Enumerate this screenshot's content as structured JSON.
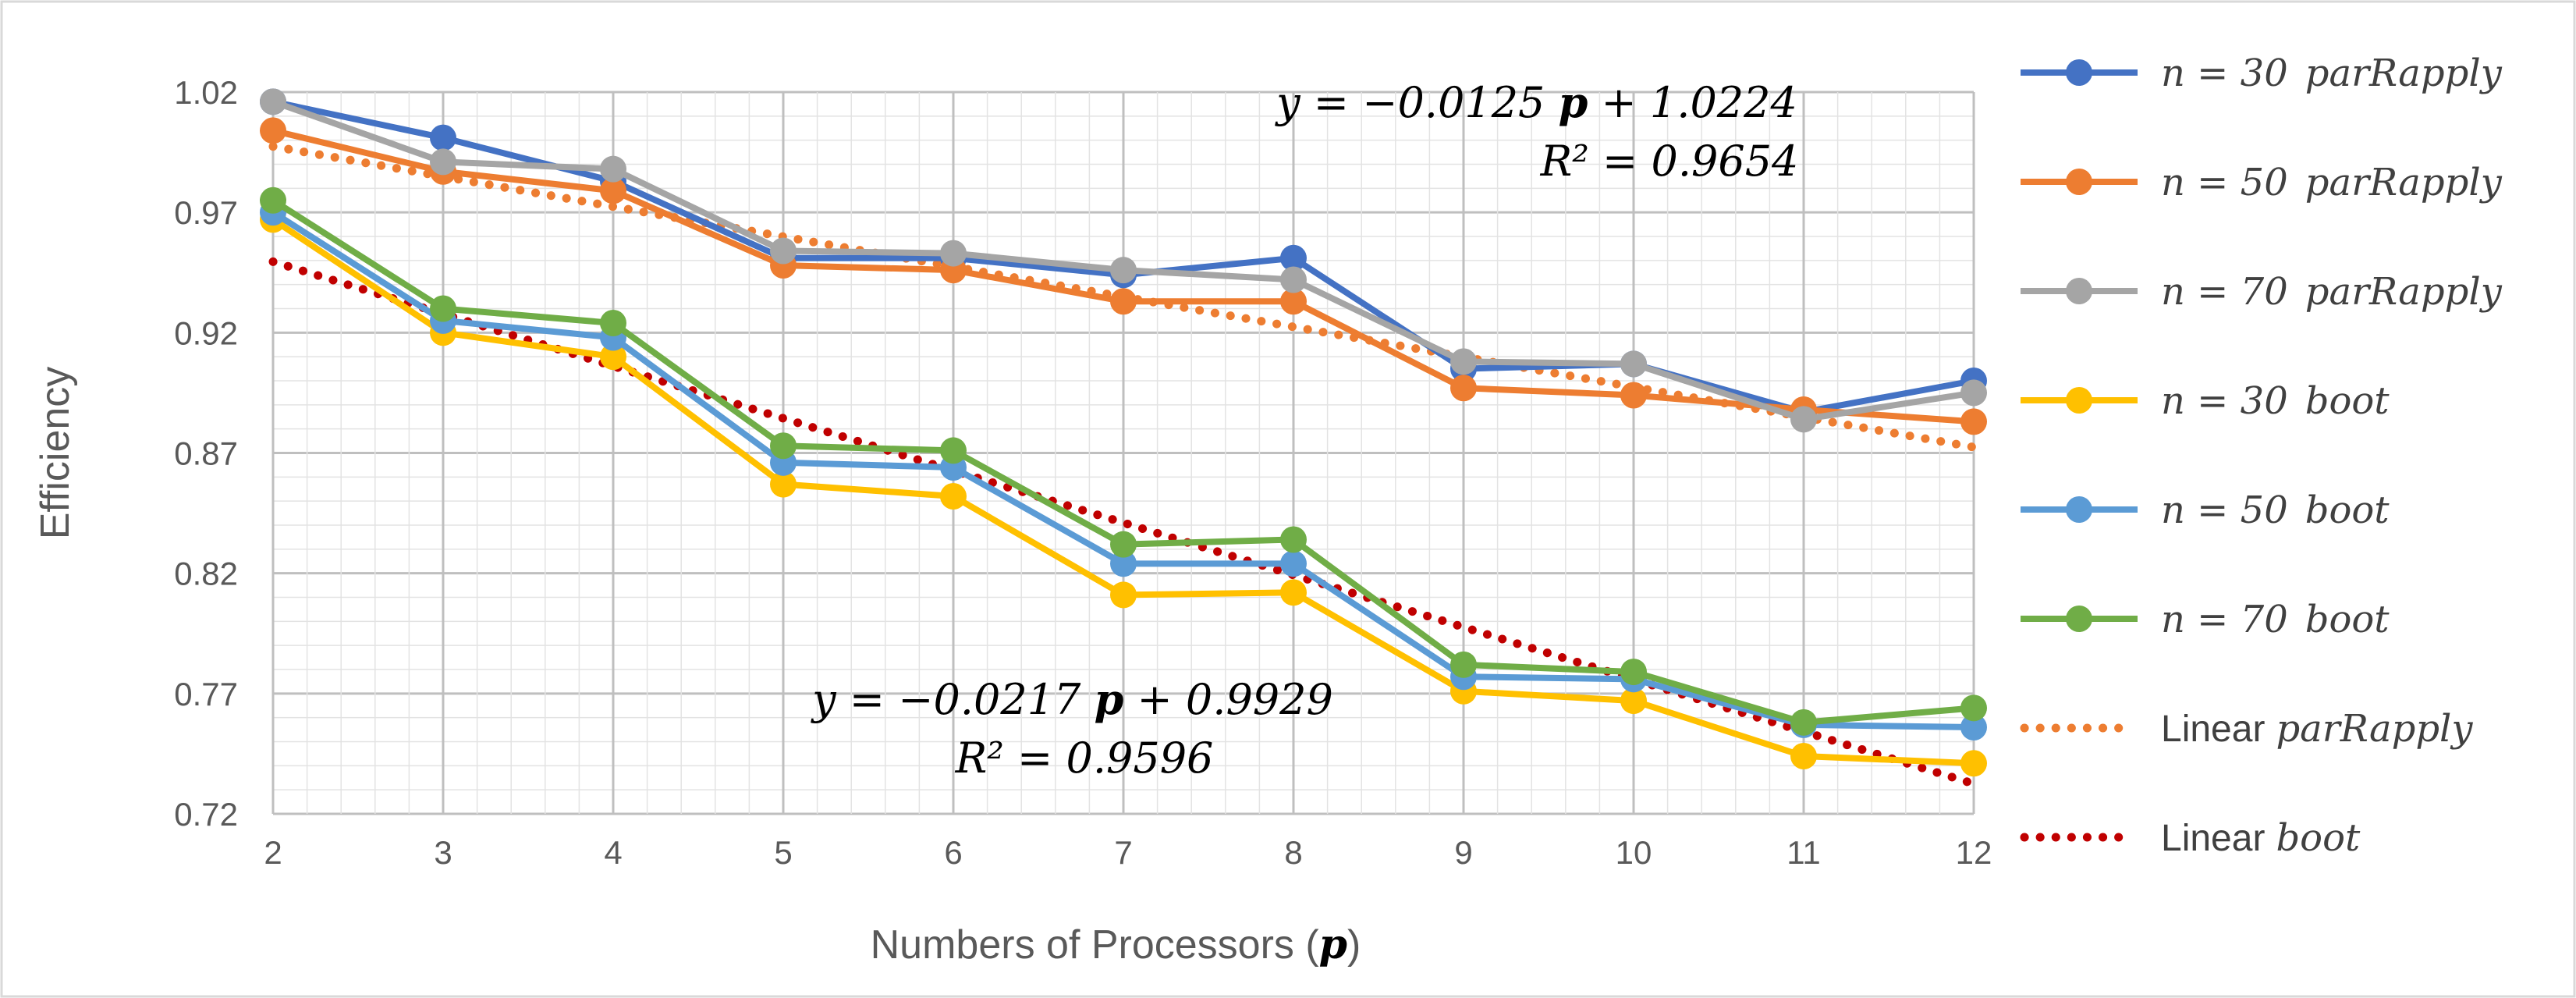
{
  "chart_data": {
    "type": "line",
    "title": "",
    "xlabel_prefix": "Numbers of Processors (",
    "xlabel_symbol": "p",
    "xlabel_suffix": ")",
    "ylabel": "Efficiency",
    "x": [
      2,
      3,
      4,
      5,
      6,
      7,
      8,
      9,
      10,
      11,
      12
    ],
    "x_tick_labels": [
      "2",
      "3",
      "4",
      "5",
      "6",
      "7",
      "8",
      "9",
      "10",
      "11",
      "12"
    ],
    "y_tick_labels": [
      "0.72",
      "0.77",
      "0.82",
      "0.87",
      "0.92",
      "0.97",
      "1.02"
    ],
    "ylim": [
      0.72,
      1.02
    ],
    "xlim": [
      2,
      12
    ],
    "grid": true,
    "legend_position": "right",
    "series": [
      {
        "name": "n = 30  parRapply",
        "n_label": "n = 30",
        "method": "parRapply",
        "color": "#4472C4",
        "values": [
          1.016,
          1.001,
          0.983,
          0.951,
          0.951,
          0.944,
          0.951,
          0.905,
          0.907,
          0.887,
          0.9
        ]
      },
      {
        "name": "n = 50  parRapply",
        "n_label": "n = 50",
        "method": "parRapply",
        "color": "#ED7D31",
        "values": [
          1.004,
          0.987,
          0.979,
          0.948,
          0.946,
          0.933,
          0.933,
          0.897,
          0.894,
          0.888,
          0.883
        ]
      },
      {
        "name": "n = 70  parRapply",
        "n_label": "n = 70",
        "method": "parRapply",
        "color": "#A5A5A5",
        "values": [
          1.016,
          0.991,
          0.988,
          0.954,
          0.953,
          0.946,
          0.942,
          0.908,
          0.907,
          0.884,
          0.895
        ]
      },
      {
        "name": "n = 30  boot",
        "n_label": "n = 30",
        "method": "boot",
        "color": "#FFC000",
        "values": [
          0.967,
          0.92,
          0.91,
          0.857,
          0.852,
          0.811,
          0.812,
          0.771,
          0.767,
          0.744,
          0.741
        ]
      },
      {
        "name": "n = 50  boot",
        "n_label": "n = 50",
        "method": "boot",
        "color": "#5B9BD5",
        "values": [
          0.97,
          0.925,
          0.918,
          0.866,
          0.864,
          0.824,
          0.824,
          0.777,
          0.776,
          0.757,
          0.756
        ]
      },
      {
        "name": "n = 70  boot",
        "n_label": "n = 70",
        "method": "boot",
        "color": "#70AD47",
        "values": [
          0.975,
          0.93,
          0.924,
          0.873,
          0.871,
          0.832,
          0.834,
          0.782,
          0.779,
          0.758,
          0.764
        ]
      }
    ],
    "trendlines": [
      {
        "name": "Linear parRapply",
        "label_word": "Linear",
        "label_method": "parRapply",
        "color": "#ED7D31",
        "slope": -0.0125,
        "intercept": 1.0224,
        "equation_prefix": "y = −0.0125 ",
        "equation_suffix": " + 1.0224",
        "r2_label": "R² = 0.9654"
      },
      {
        "name": "Linear boot",
        "label_word": "Linear",
        "label_method": "boot",
        "color": "#C00000",
        "slope": -0.0217,
        "intercept": 0.9929,
        "equation_prefix": "y = −0.0217 ",
        "equation_suffix": " + 0.9929",
        "r2_label": "R² = 0.9596"
      }
    ],
    "equation_symbol": "p"
  }
}
